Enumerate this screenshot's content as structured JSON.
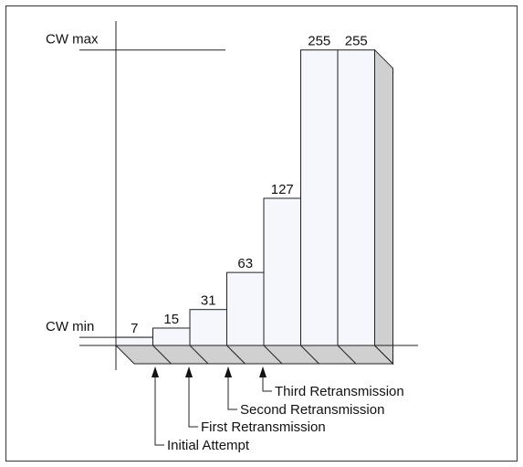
{
  "chart_data": {
    "type": "bar",
    "values": [
      7,
      15,
      31,
      63,
      127,
      255,
      255
    ],
    "ylim": [
      0,
      280
    ],
    "yticks": [
      {
        "value": 7,
        "label": "CW min"
      },
      {
        "value": 255,
        "label": "CW max"
      }
    ],
    "color": "#f5f7fd",
    "annotations": [
      "Initial Attempt",
      "First Retransmission",
      "Second Retransmission",
      "Third Retransmission"
    ]
  }
}
